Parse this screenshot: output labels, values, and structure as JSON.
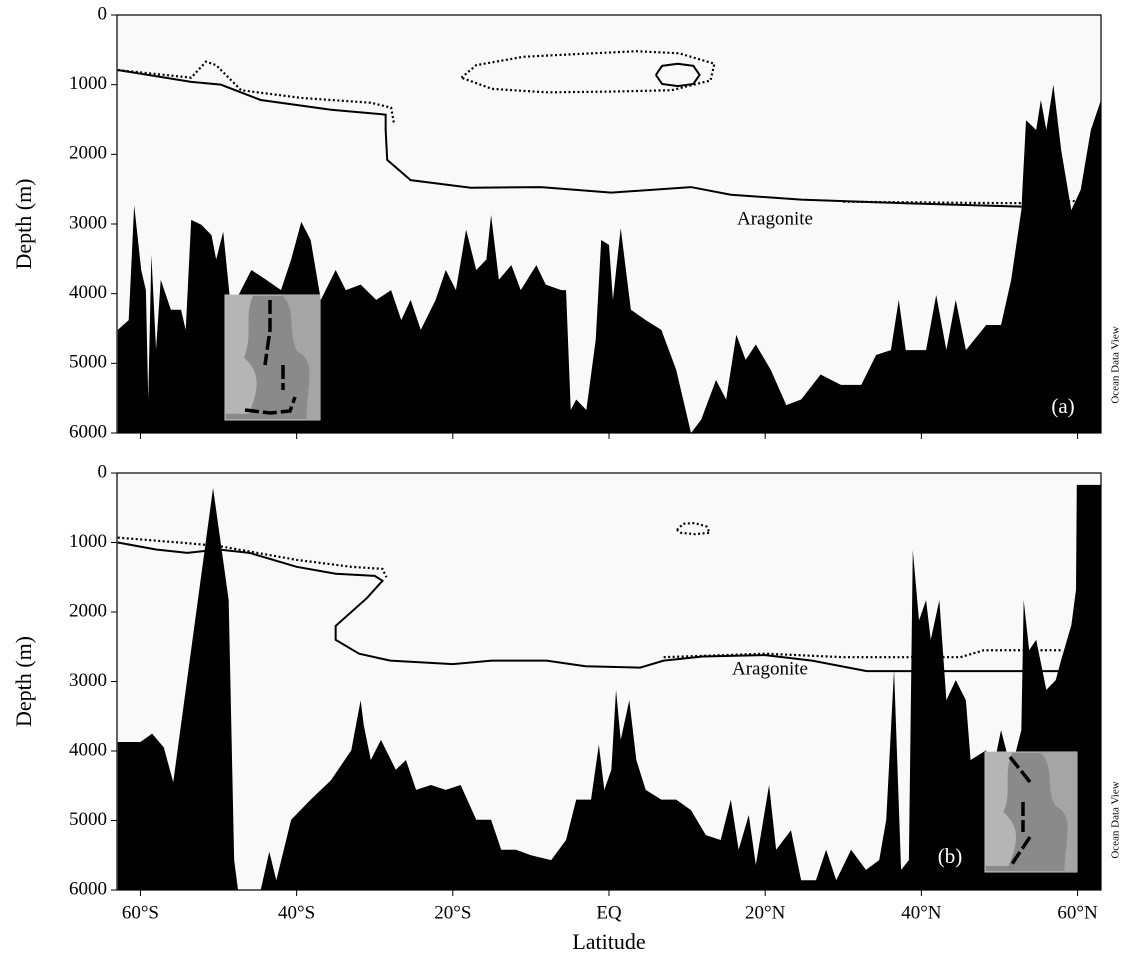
{
  "chart_data": [
    {
      "type": "area",
      "ylabel": "Depth (m)",
      "xlim": [
        -63,
        63
      ],
      "ylim": [
        0,
        6000
      ],
      "invert_y": true,
      "yticks": [
        0,
        1000,
        2000,
        3000,
        4000,
        5000,
        6000
      ],
      "xticks": [
        -60,
        -40,
        -20,
        0,
        20,
        40,
        60
      ],
      "annotations": [
        "Aragonite",
        "(a)",
        "Ocean Data View"
      ],
      "series": [
        {
          "kind": "area",
          "color": "#000000",
          "x": [
            -62.9,
            -61.5,
            -60.8,
            -59.9,
            -59.3,
            -59,
            -58.6,
            -58,
            -57.4,
            -56.1,
            -54.8,
            -54.2,
            -53.5,
            -52.2,
            -50.9,
            -50.3,
            -49.4,
            -48.4,
            -45.8,
            -43.9,
            -42,
            -40.7,
            -39.4,
            -38.2,
            -36.9,
            -35,
            -33.7,
            -31.8,
            -29.8,
            -27.9,
            -26.6,
            -25.4,
            -24.1,
            -22.2,
            -20.9,
            -19.6,
            -18.3,
            -17,
            -15.7,
            -15.1,
            -14.1,
            -12.5,
            -11.3,
            -9.3,
            -8.1,
            -6.1,
            -5.5,
            -4.9,
            -4.2,
            -2.9,
            -1.7,
            -1,
            0,
            0.5,
            1.5,
            2.8,
            4.7,
            6.7,
            8.6,
            10.5,
            11.8,
            13.7,
            15,
            16.3,
            17.5,
            18.8,
            20.7,
            22.7,
            24.6,
            27.1,
            29.7,
            32.3,
            34.2,
            36.1,
            37.1,
            38,
            40.6,
            41.9,
            43.2,
            44.4,
            45.7,
            48.3,
            50.2,
            51.5,
            52.8,
            53.4,
            54.7,
            55.3,
            56,
            56.9,
            57.9,
            59.2,
            60.4,
            61.7,
            63
          ],
          "values": [
            4520,
            4380,
            2730,
            3660,
            3950,
            5520,
            3440,
            4800,
            3800,
            4230,
            4230,
            4520,
            2940,
            3010,
            3160,
            3510,
            3110,
            4230,
            3660,
            3800,
            3950,
            3510,
            2970,
            3230,
            4090,
            3660,
            3950,
            3870,
            4090,
            3950,
            4380,
            4090,
            4520,
            4090,
            3660,
            3950,
            3080,
            3660,
            3510,
            2870,
            3800,
            3590,
            3950,
            3590,
            3870,
            3950,
            3950,
            5670,
            5520,
            5670,
            4660,
            3230,
            3300,
            4090,
            3060,
            4230,
            4380,
            4520,
            5090,
            6000,
            5810,
            5240,
            5520,
            4590,
            4950,
            4730,
            5090,
            5600,
            5520,
            5160,
            5310,
            5310,
            4880,
            4810,
            4090,
            4810,
            4810,
            4020,
            4810,
            4090,
            4810,
            4450,
            4450,
            3800,
            2800,
            1510,
            1650,
            1220,
            1650,
            1000,
            1940,
            2800,
            2510,
            1650,
            1220
          ]
        },
        {
          "kind": "line",
          "linestyle": "solid",
          "color": "#000000",
          "x": [
            -62.9,
            -53.5,
            -49.7,
            -44.6,
            -35.6,
            -28.6,
            -28.6,
            -28.4,
            -25.4,
            -17.7,
            -8.7,
            0.3,
            5.4,
            10.5,
            15.6,
            24.6,
            37.4,
            52.8,
            null,
            6.0,
            6.8,
            8.8,
            10.8,
            11.6,
            10.8,
            8.8,
            6.8,
            6.0
          ],
          "values": [
            790,
            960,
            1000,
            1220,
            1360,
            1430,
            1650,
            2080,
            2370,
            2480,
            2470,
            2550,
            2510,
            2470,
            2580,
            2650,
            2700,
            2750,
            null,
            860,
            730,
            700,
            730,
            860,
            990,
            1020,
            990,
            860
          ]
        },
        {
          "kind": "line",
          "linestyle": "dotted",
          "color": "#000000",
          "x": [
            -62.9,
            -53.5,
            -51.6,
            -50.3,
            -47.1,
            -39.4,
            -30.5,
            -27.9,
            -27.5,
            null,
            30,
            50,
            55,
            63,
            null,
            -18.9,
            -17,
            -11,
            -4,
            3.5,
            9,
            13.5,
            13,
            8,
            0,
            -8,
            -15,
            -18.9
          ],
          "values": [
            790,
            900,
            670,
            720,
            1080,
            1190,
            1260,
            1330,
            1580,
            null,
            2680,
            2700,
            2700,
            2650,
            null,
            900,
            720,
            600,
            560,
            520,
            550,
            700,
            940,
            1080,
            1100,
            1110,
            1060,
            900
          ]
        }
      ]
    },
    {
      "type": "area",
      "ylabel": "Depth (m)",
      "xlabel": "Latitude",
      "xlim": [
        -63,
        63
      ],
      "ylim": [
        0,
        6000
      ],
      "invert_y": true,
      "yticks": [
        0,
        1000,
        2000,
        3000,
        4000,
        5000,
        6000
      ],
      "xticks": [
        {
          "value": -60,
          "label": "60°S"
        },
        {
          "value": -40,
          "label": "40°S"
        },
        {
          "value": -20,
          "label": "20°S"
        },
        {
          "value": 0,
          "label": "EQ"
        },
        {
          "value": 20,
          "label": "20°N"
        },
        {
          "value": 40,
          "label": "40°N"
        },
        {
          "value": 60,
          "label": "60°N"
        }
      ],
      "annotations": [
        "Aragonite",
        "(b)",
        "Ocean Data View"
      ],
      "series": [
        {
          "kind": "area",
          "color": "#000000",
          "x": [
            -62.9,
            -60,
            -58.5,
            -57,
            -55.8,
            -50.7,
            -48.7,
            -48,
            -47.5,
            -44.6,
            -43.5,
            -42.6,
            -40.7,
            -38.2,
            -35.6,
            -33,
            -31.8,
            -31.4,
            -30.5,
            -29.2,
            -27.3,
            -26,
            -24.7,
            -22.8,
            -20.9,
            -19,
            -17,
            -15.1,
            -13.8,
            -11.9,
            -10,
            -7.4,
            -5.5,
            -4.2,
            -2.3,
            -1.3,
            -0.6,
            0.3,
            0.9,
            1.5,
            2.6,
            3.5,
            4.7,
            6.7,
            8.6,
            10.5,
            12.4,
            14.3,
            15.6,
            16.6,
            17.9,
            18.8,
            20.5,
            21.4,
            23.3,
            24.6,
            26.5,
            27.8,
            29.1,
            31,
            32.9,
            34.6,
            35.5,
            36.5,
            37.4,
            38.4,
            38.9,
            39.7,
            40.6,
            41.2,
            42.3,
            43.2,
            44.4,
            45.7,
            46.3,
            48.3,
            48.9,
            50.2,
            51.5,
            52.8,
            53.1,
            53.8,
            54.7,
            56,
            57.2,
            57.9,
            59.2,
            59.8,
            59.9,
            63
          ],
          "values": [
            3870,
            3870,
            3750,
            3950,
            4450,
            215,
            1830,
            5570,
            6000,
            6000,
            5450,
            5860,
            4990,
            4700,
            4420,
            3990,
            3270,
            3630,
            4130,
            3840,
            4270,
            4130,
            4560,
            4490,
            4560,
            4490,
            4990,
            4990,
            5420,
            5420,
            5500,
            5570,
            5280,
            4700,
            4700,
            3910,
            4560,
            4270,
            3120,
            3840,
            3270,
            4130,
            4560,
            4700,
            4700,
            4850,
            5210,
            5280,
            4700,
            5420,
            4920,
            5640,
            4490,
            5420,
            5140,
            5860,
            5860,
            5420,
            5860,
            5420,
            5710,
            5570,
            4990,
            2830,
            5710,
            5570,
            1110,
            2120,
            1830,
            2400,
            1830,
            3270,
            2980,
            3270,
            4130,
            3990,
            4420,
            3700,
            4270,
            3700,
            1830,
            2550,
            2400,
            3120,
            2980,
            2690,
            2190,
            1680,
            170,
            170
          ]
        },
        {
          "kind": "line",
          "linestyle": "solid",
          "color": "#000000",
          "x": [
            -62.9,
            -58,
            -54,
            -50,
            -46,
            -40,
            -35,
            -30,
            -29,
            -31,
            -35,
            -35,
            -32,
            -28,
            -20,
            -15,
            -8,
            -3,
            4,
            7,
            12,
            20,
            26,
            33,
            40,
            50,
            60
          ],
          "values": [
            1000,
            1100,
            1150,
            1100,
            1150,
            1350,
            1450,
            1480,
            1550,
            1800,
            2200,
            2400,
            2600,
            2700,
            2750,
            2700,
            2700,
            2780,
            2800,
            2700,
            2640,
            2620,
            2700,
            2850,
            2850,
            2850,
            2850
          ]
        },
        {
          "kind": "line",
          "linestyle": "dotted",
          "color": "#000000",
          "x": [
            -62.9,
            -55,
            -50,
            -40,
            -33,
            -29,
            -28.5,
            null,
            7,
            20,
            30,
            40,
            45,
            48,
            55,
            58,
            null,
            8.7,
            9.5,
            11,
            12.5,
            12.9,
            11,
            9.2,
            8.7
          ],
          "values": [
            930,
            1000,
            1050,
            1250,
            1350,
            1380,
            1500,
            null,
            2650,
            2600,
            2650,
            2650,
            2650,
            2550,
            2550,
            2550,
            null,
            820,
            730,
            720,
            770,
            860,
            880,
            860,
            820
          ]
        }
      ]
    }
  ]
}
